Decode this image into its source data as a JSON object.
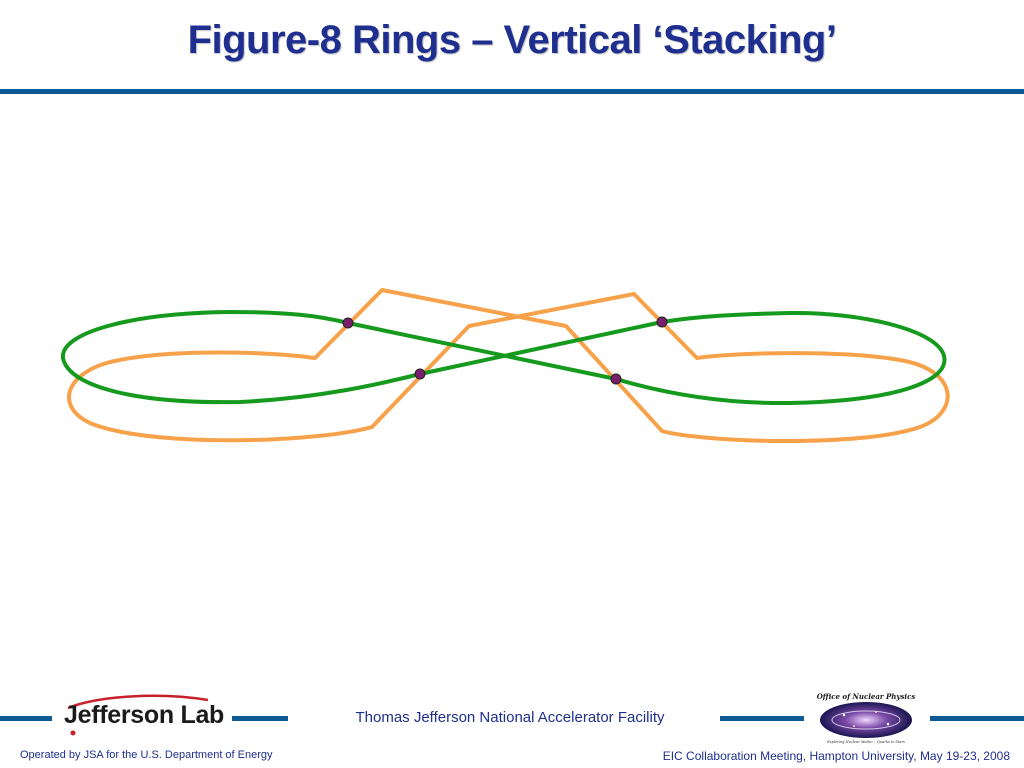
{
  "slide": {
    "title": "Figure-8 Rings – Vertical ‘Stacking’"
  },
  "diagram": {
    "rings": [
      {
        "name": "orange-ring",
        "color": "#f7a24a"
      },
      {
        "name": "green-ring",
        "color": "#169a1e"
      }
    ],
    "crossing_marker_color": "#7a1f6e",
    "crossing_marker_count": 4
  },
  "footer": {
    "logo_text": "Jefferson Lab",
    "facility": "Thomas Jefferson National Accelerator Facility",
    "operated_by": "Operated by JSA for the U.S. Department of Energy",
    "meeting": "EIC Collaboration Meeting, Hampton University, May 19-23, 2008",
    "onp_logo_text": "Office of Nuclear Physics",
    "onp_logo_subtext": "Exploring Nuclear Matter – Quarks to Stars"
  },
  "colors": {
    "title": "#1f2f8f",
    "rule": "#0e5a97",
    "orange": "#f7a24a",
    "green": "#169a1e"
  }
}
